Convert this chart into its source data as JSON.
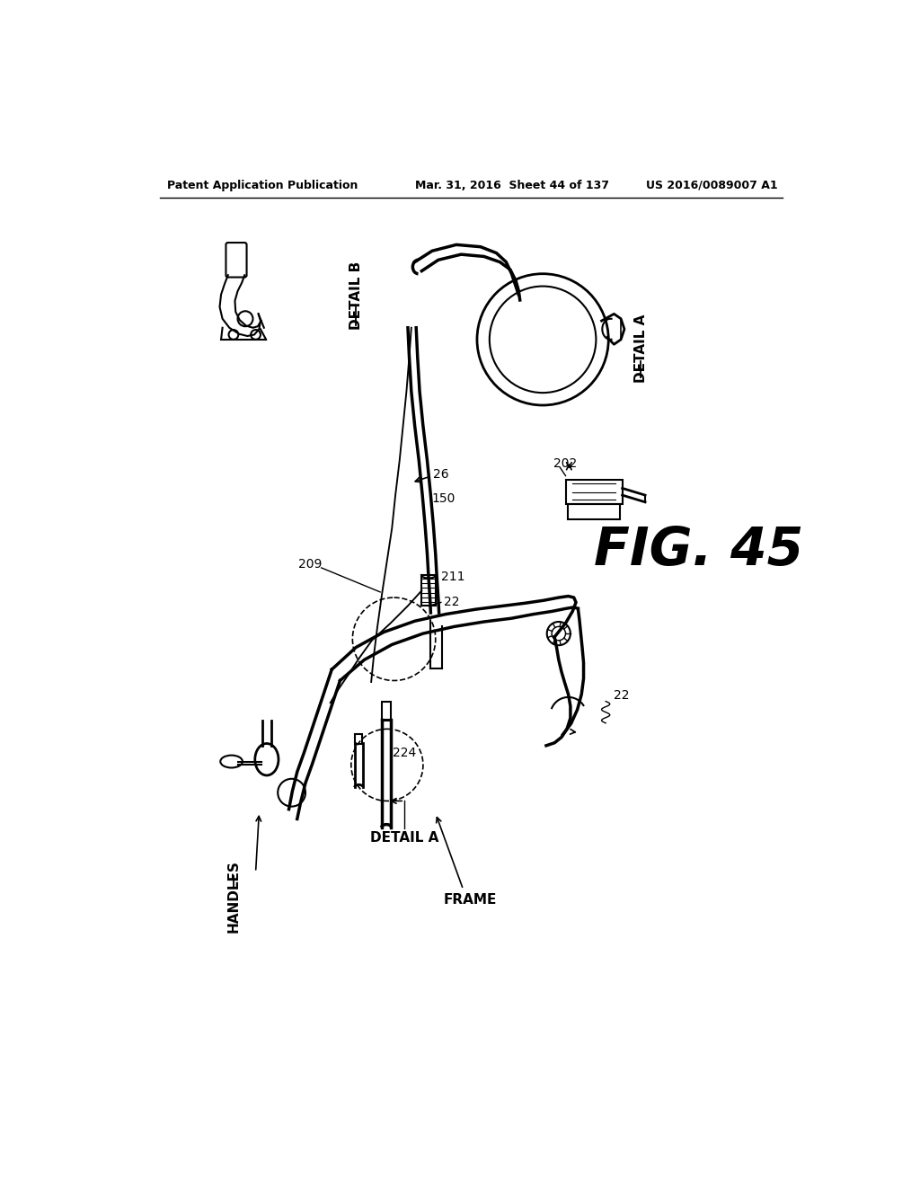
{
  "bg_color": "#ffffff",
  "line_color": "#000000",
  "header_left": "Patent Application Publication",
  "header_mid": "Mar. 31, 2016  Sheet 44 of 137",
  "header_right": "US 2016/0089007 A1",
  "fig_label": "FIG. 45",
  "lw": 1.5
}
